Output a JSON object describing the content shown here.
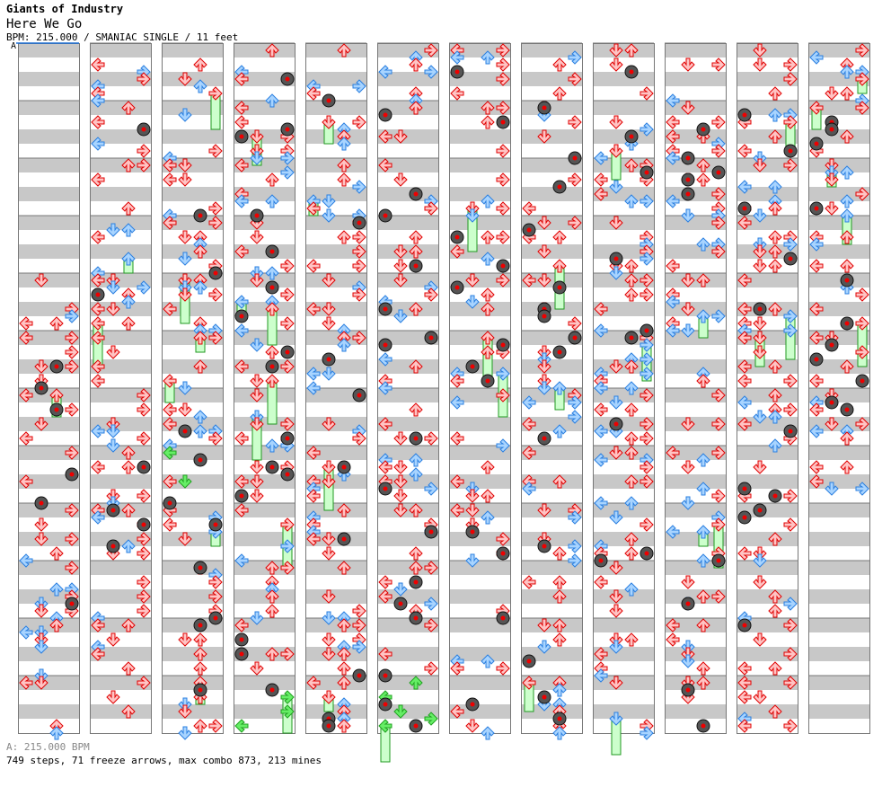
{
  "header": {
    "song_title": "Giants of Industry",
    "artist": "Here We Go",
    "meta": "BPM: 215.000 / SMANIAC SINGLE / 11 feet",
    "bpm_marker": "A"
  },
  "footer": {
    "bpm_legend": "A: 215.000 BPM",
    "stats": "749 steps, 71 freeze arrows, max combo 873, 213 mines"
  },
  "colors": {
    "quarter_fill": "#ffc4c4",
    "quarter_stroke": "#e00000",
    "eighth_fill": "#a8d4ff",
    "eighth_stroke": "#2a7fe0",
    "sixteenth_fill": "#66ee66",
    "sixteenth_stroke": "#20a020",
    "freeze_fill": "#ccffcc",
    "freeze_stroke": "#229922",
    "band_gray": "#c8c8c8",
    "border": "#777777",
    "bpm_line": "#1a6fd6"
  }
}
